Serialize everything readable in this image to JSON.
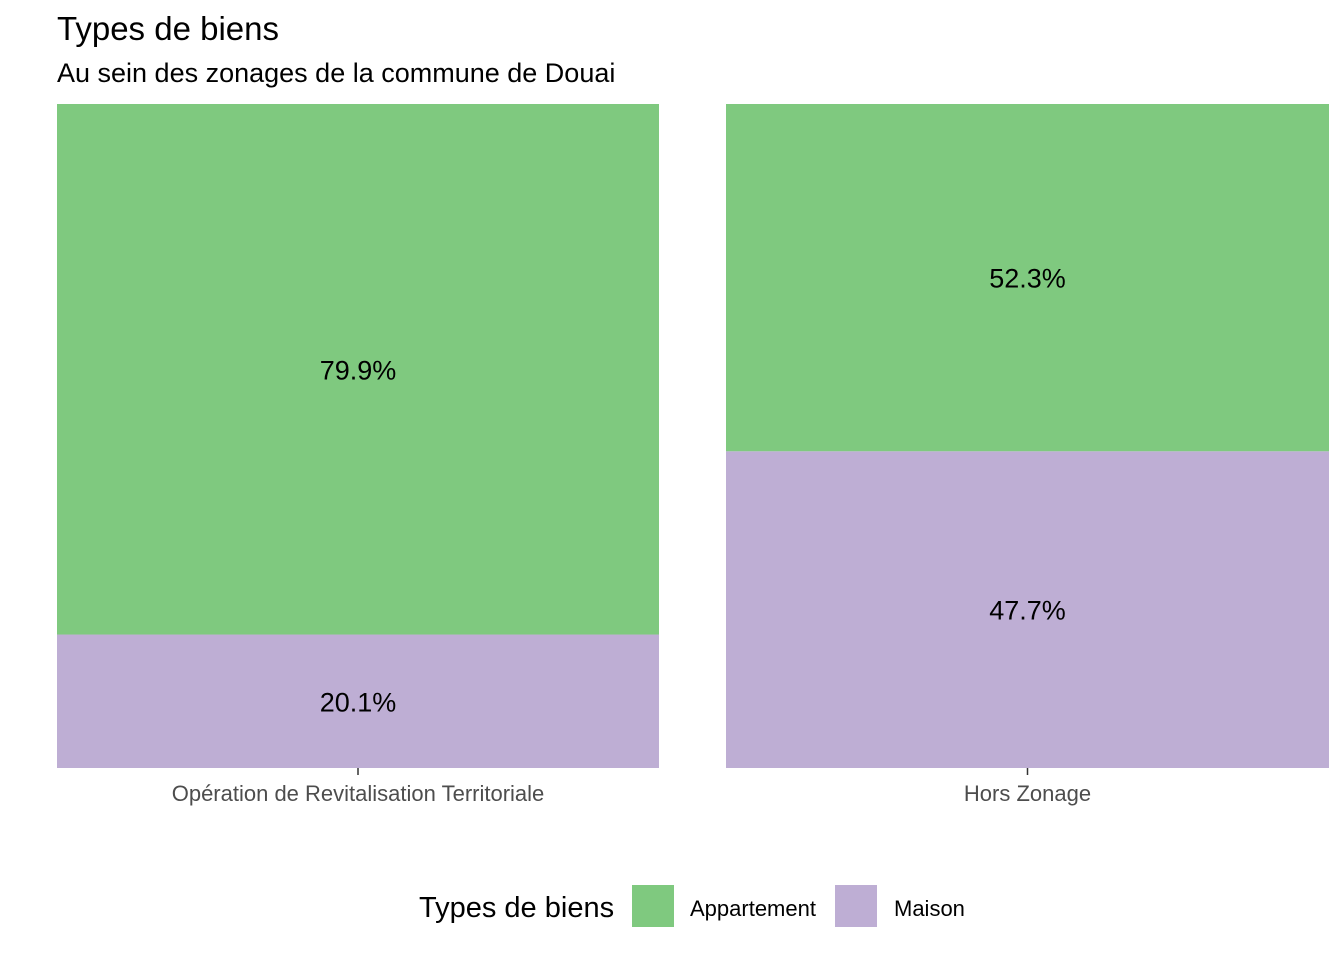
{
  "chart_data": {
    "type": "bar",
    "stacked": true,
    "title": "Types de biens",
    "subtitle": "Au sein des zonages de la commune de Douai",
    "categories": [
      "Opération de Revitalisation Territoriale",
      "Hors Zonage"
    ],
    "series": [
      {
        "name": "Appartement",
        "values": [
          79.9,
          52.3
        ],
        "labels": [
          "79.9%",
          "52.3%"
        ],
        "color": "#7FC97F"
      },
      {
        "name": "Maison",
        "values": [
          20.1,
          47.7
        ],
        "labels": [
          "20.1%",
          "47.7%"
        ],
        "color": "#BEAED4"
      }
    ],
    "ylim": [
      0,
      100
    ],
    "legend": {
      "title": "Types de biens",
      "position": "bottom"
    },
    "grid": false
  }
}
